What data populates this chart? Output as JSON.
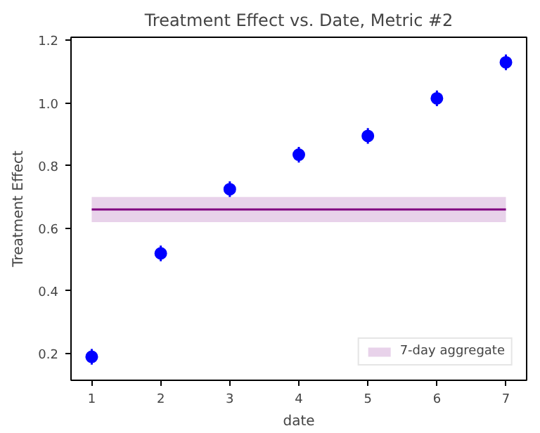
{
  "chart_data": {
    "type": "scatter",
    "title": "Treatment Effect vs. Date, Metric #2",
    "xlabel": "date",
    "ylabel": "Treatment Effect",
    "x": [
      1,
      2,
      3,
      4,
      5,
      6,
      7
    ],
    "series": [
      {
        "color": "#0000ff",
        "values": [
          0.19,
          0.52,
          0.725,
          0.835,
          0.895,
          1.015,
          1.13
        ],
        "errors": [
          0.025,
          0.025,
          0.025,
          0.025,
          0.025,
          0.025,
          0.025
        ]
      }
    ],
    "bands": [
      {
        "axis": "y",
        "from": 0.62,
        "to": 0.7,
        "label": "7-day aggregate",
        "color": "#e8d2ea"
      }
    ],
    "ref_lines": [
      {
        "axis": "y",
        "value": 0.66,
        "color": "#800080",
        "line_style": "solid"
      }
    ],
    "xlim": [
      0.7,
      7.3
    ],
    "ylim": [
      0.115,
      1.21
    ],
    "xticks": [
      1,
      2,
      3,
      4,
      5,
      6,
      7
    ],
    "yticks": [
      0.2,
      0.4,
      0.6,
      0.8,
      {
        "value": 1,
        "label": "1.0"
      },
      1.2
    ],
    "marker": "circle",
    "grid": false,
    "legend": "bottom right"
  }
}
